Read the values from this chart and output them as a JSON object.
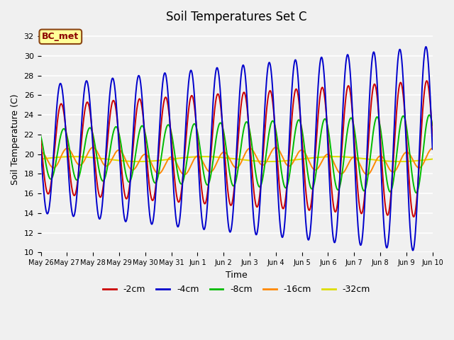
{
  "title": "Soil Temperatures Set C",
  "xlabel": "Time",
  "ylabel": "Soil Temperature (C)",
  "ylim": [
    10,
    33
  ],
  "yticks": [
    10,
    12,
    14,
    16,
    18,
    20,
    22,
    24,
    26,
    28,
    30,
    32
  ],
  "bg_color": "#f0f0f0",
  "plot_bg_color": "#f0f0f0",
  "annotation_text": "BC_met",
  "annotation_bg": "#ffff99",
  "annotation_border": "#8B4513",
  "annotation_text_color": "#8B0000",
  "xtick_labels": [
    "May 26",
    "May 27",
    "May 28",
    "May 29",
    "May 30",
    "May 31",
    "Jun 1",
    "Jun 2",
    "Jun 3",
    "Jun 4",
    "Jun 5",
    "Jun 6",
    "Jun 7",
    "Jun 8",
    "Jun 9",
    "Jun 10"
  ],
  "legend_fontsize": 9,
  "title_fontsize": 12,
  "axis_label_fontsize": 9,
  "tick_fontsize": 8,
  "line_width": 1.4,
  "series_colors": [
    "#cc0000",
    "#0000cc",
    "#00bb00",
    "#ff8800",
    "#dddd00"
  ],
  "series_labels": [
    "-2cm",
    "-4cm",
    "-8cm",
    "-16cm",
    "-32cm"
  ]
}
